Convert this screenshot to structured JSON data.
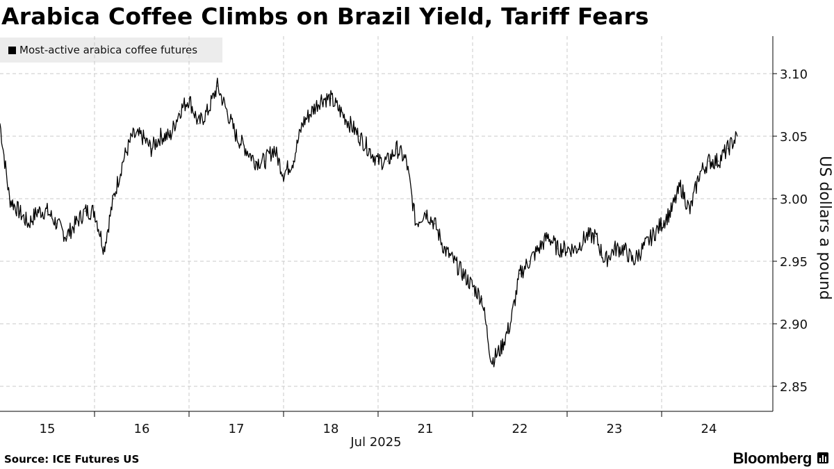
{
  "header": {
    "title": "Arabica Coffee Climbs on Brazil Yield, Tariff Fears"
  },
  "legend": {
    "label": "Most-active arabica coffee futures"
  },
  "footer": {
    "source": "Source: ICE Futures US",
    "brand": "Bloomberg"
  },
  "colors": {
    "line": "#000000",
    "grid": "#c8c8c8",
    "legend_bg": "#ececec"
  },
  "chart_data": {
    "type": "line",
    "title": "Arabica Coffee Climbs on Brazil Yield, Tariff Fears",
    "series_name": "Most-active arabica coffee futures",
    "xlabel": "Jul 2025",
    "ylabel": "US dollars a pound",
    "ylim": [
      2.83,
      3.13
    ],
    "yticks": [
      2.85,
      2.9,
      2.95,
      3.0,
      3.05,
      3.1
    ],
    "ytick_labels": [
      "2.85",
      "2.90",
      "2.95",
      "3.00",
      "3.05",
      "3.10"
    ],
    "xlim": [
      0,
      8
    ],
    "x_categories": [
      "15",
      "16",
      "17",
      "18",
      "21",
      "22",
      "23",
      "24"
    ],
    "x_month_label": "Jul 2025",
    "grid": true,
    "x": [
      0.0,
      0.1,
      0.2,
      0.3,
      0.4,
      0.5,
      0.6,
      0.7,
      0.8,
      0.9,
      1.0,
      1.1,
      1.2,
      1.3,
      1.4,
      1.5,
      1.6,
      1.7,
      1.8,
      1.9,
      2.0,
      2.1,
      2.2,
      2.3,
      2.4,
      2.5,
      2.6,
      2.7,
      2.8,
      2.9,
      3.0,
      3.1,
      3.2,
      3.3,
      3.4,
      3.5,
      3.6,
      3.7,
      3.8,
      3.9,
      4.0,
      4.1,
      4.2,
      4.3,
      4.4,
      4.5,
      4.6,
      4.7,
      4.8,
      4.9,
      5.0,
      5.1,
      5.2,
      5.3,
      5.4,
      5.5,
      5.6,
      5.7,
      5.8,
      5.9,
      6.0,
      6.1,
      6.2,
      6.3,
      6.4,
      6.5,
      6.6,
      6.7,
      6.8,
      6.9,
      7.0,
      7.1,
      7.2,
      7.3,
      7.4,
      7.5,
      7.6,
      7.7,
      7.8
    ],
    "y": [
      3.06,
      3.0,
      2.99,
      2.98,
      2.99,
      2.99,
      2.98,
      2.97,
      2.98,
      2.99,
      2.99,
      2.96,
      3.0,
      3.03,
      3.05,
      3.05,
      3.04,
      3.05,
      3.05,
      3.07,
      3.08,
      3.06,
      3.07,
      3.09,
      3.07,
      3.05,
      3.04,
      3.03,
      3.03,
      3.04,
      3.02,
      3.03,
      3.06,
      3.07,
      3.08,
      3.08,
      3.07,
      3.06,
      3.05,
      3.04,
      3.03,
      3.03,
      3.04,
      3.03,
      2.98,
      2.99,
      2.98,
      2.96,
      2.95,
      2.94,
      2.93,
      2.92,
      2.87,
      2.88,
      2.9,
      2.94,
      2.95,
      2.96,
      2.97,
      2.96,
      2.96,
      2.96,
      2.97,
      2.97,
      2.95,
      2.96,
      2.96,
      2.95,
      2.96,
      2.97,
      2.98,
      2.99,
      3.01,
      2.99,
      3.02,
      3.03,
      3.03,
      3.04,
      3.05
    ]
  }
}
